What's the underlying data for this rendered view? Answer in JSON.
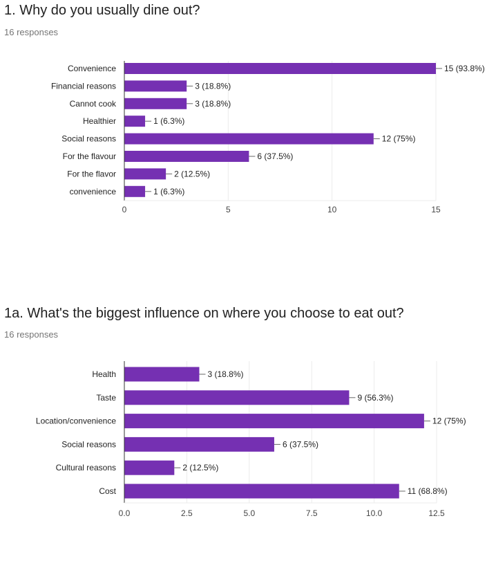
{
  "questions": [
    {
      "title": "1. Why do you usually dine out?",
      "responses": "16 responses"
    },
    {
      "title": "1a. What's the biggest influence on where you choose to eat out?",
      "responses": "16 responses"
    }
  ],
  "colors": {
    "bar": "#7530B2",
    "grid": "#EBEBEB",
    "axis": "#333333",
    "leader": "#666666"
  },
  "chart_data": [
    {
      "type": "bar",
      "orientation": "horizontal",
      "categories": [
        "Convenience",
        "Financial reasons",
        "Cannot cook",
        "Healthier",
        "Social reasons",
        "For the flavour",
        "For the flavor",
        "convenience"
      ],
      "values": [
        15,
        3,
        3,
        1,
        12,
        6,
        2,
        1
      ],
      "value_labels": [
        "15 (93.8%)",
        "3 (18.8%)",
        "3 (18.8%)",
        "1 (6.3%)",
        "12 (75%)",
        "6 (37.5%)",
        "2 (12.5%)",
        "1 (6.3%)"
      ],
      "xlim": [
        0,
        15
      ],
      "xticks": [
        "0",
        "5",
        "10",
        "15"
      ],
      "grid": true
    },
    {
      "type": "bar",
      "orientation": "horizontal",
      "categories": [
        "Health",
        "Taste",
        "Location/convenience",
        "Social reasons",
        "Cultural reasons",
        "Cost"
      ],
      "values": [
        3,
        9,
        12,
        6,
        2,
        11
      ],
      "value_labels": [
        "3 (18.8%)",
        "9 (56.3%)",
        "12 (75%)",
        "6 (37.5%)",
        "2 (12.5%)",
        "11 (68.8%)"
      ],
      "xlim": [
        0,
        12.5
      ],
      "xticks": [
        "0.0",
        "2.5",
        "5.0",
        "7.5",
        "10.0",
        "12.5"
      ],
      "grid": true
    }
  ]
}
